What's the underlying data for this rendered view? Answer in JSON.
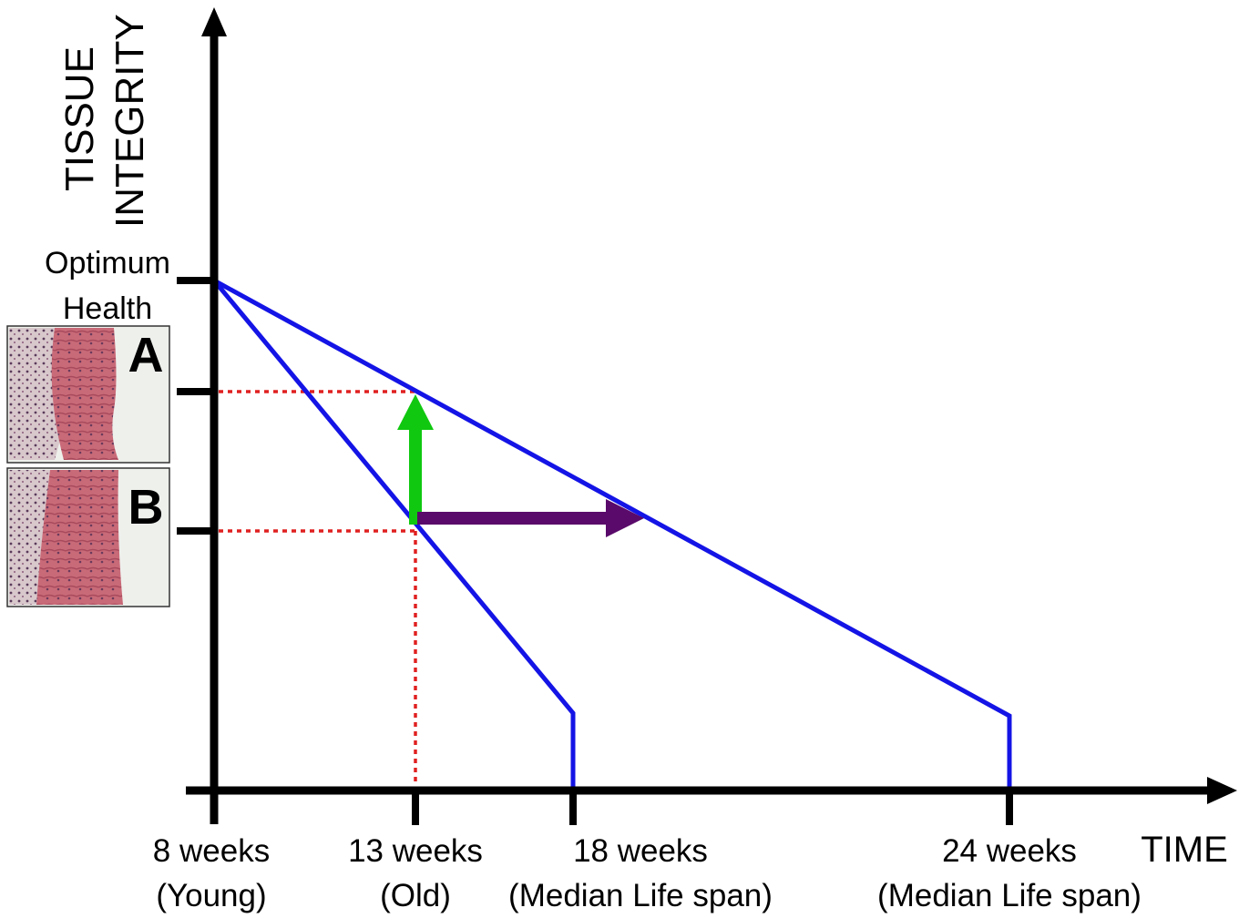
{
  "y_axis": {
    "label": [
      "TISSUE",
      "INTEGRITY"
    ],
    "optimum": [
      "Optimum",
      "Health"
    ]
  },
  "panels": [
    {
      "label": "A"
    },
    {
      "label": "B"
    }
  ],
  "x_axis": {
    "label": "TIME",
    "ticks": [
      {
        "line1": "8 weeks",
        "line2": "(Young)"
      },
      {
        "line1": "13 weeks",
        "line2": "(Old)"
      },
      {
        "line1": "18 weeks",
        "line2": "(Median Life span)"
      },
      {
        "line1": "24 weeks",
        "line2": "(Median Life span)"
      }
    ]
  }
}
